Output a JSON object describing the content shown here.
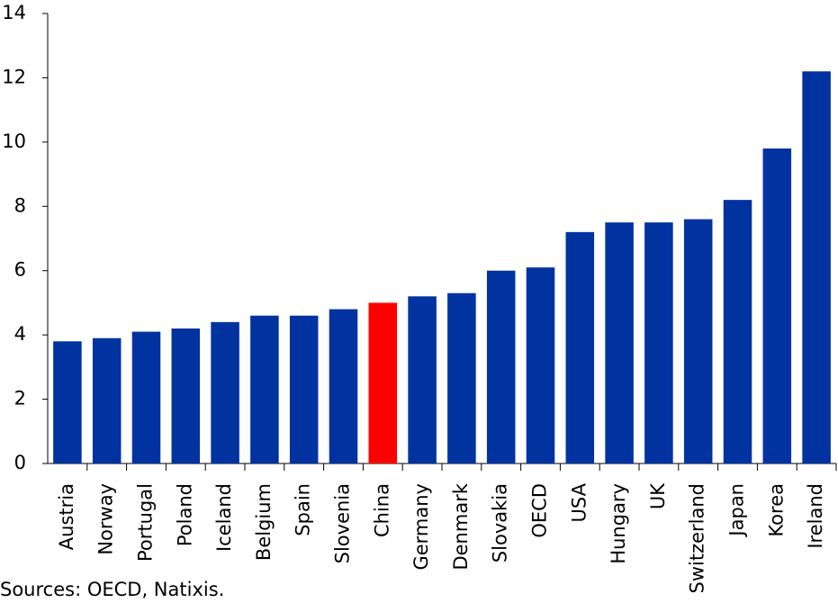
{
  "chart_data": {
    "type": "bar",
    "categories": [
      "Austria",
      "Norway",
      "Portugal",
      "Poland",
      "Iceland",
      "Belgium",
      "Spain",
      "Slovenia",
      "China",
      "Germany",
      "Denmark",
      "Slovakia",
      "OECD",
      "USA",
      "Hungary",
      "UK",
      "Switzerland",
      "Japan",
      "Korea",
      "Ireland"
    ],
    "values": [
      3.8,
      3.9,
      4.1,
      4.2,
      4.4,
      4.6,
      4.6,
      4.8,
      5.0,
      5.2,
      5.3,
      6.0,
      6.1,
      7.2,
      7.5,
      7.5,
      7.6,
      8.2,
      9.8,
      12.2
    ],
    "colors": [
      "#0033a0",
      "#0033a0",
      "#0033a0",
      "#0033a0",
      "#0033a0",
      "#0033a0",
      "#0033a0",
      "#0033a0",
      "#ff0000",
      "#0033a0",
      "#0033a0",
      "#0033a0",
      "#0033a0",
      "#0033a0",
      "#0033a0",
      "#0033a0",
      "#0033a0",
      "#0033a0",
      "#0033a0",
      "#0033a0"
    ],
    "ylim": [
      0,
      14
    ],
    "yticks": [
      0,
      2,
      4,
      6,
      8,
      10,
      12,
      14
    ],
    "grid": false,
    "source": "Sources: OECD, Natixis."
  }
}
